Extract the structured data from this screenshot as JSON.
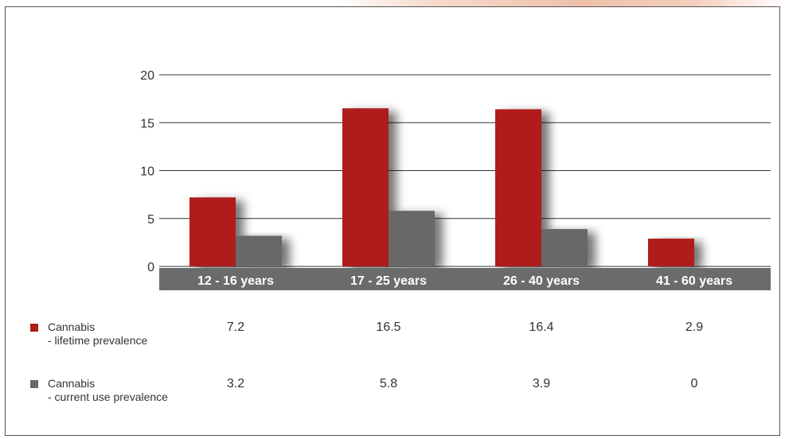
{
  "colors": {
    "lifetime": "#b01c1a",
    "current": "#676767",
    "category_band": "#6b6b6b",
    "grid": "#333333"
  },
  "chart_data": {
    "type": "bar",
    "categories": [
      "12 - 16 years",
      "17 - 25 years",
      "26 - 40 years",
      "41 - 60 years"
    ],
    "series": [
      {
        "name": "Cannabis - lifetime prevalence",
        "values": [
          7.2,
          16.5,
          16.4,
          2.9
        ]
      },
      {
        "name": "Cannabis - current use prevalence",
        "values": [
          3.2,
          5.8,
          3.9,
          0
        ]
      }
    ],
    "yticks": [
      "0",
      "5",
      "10",
      "15",
      "20"
    ],
    "ylim": [
      0,
      20
    ],
    "grid": true,
    "legend_placement": "bottom-left, as table rows"
  },
  "table": {
    "rows": [
      {
        "label_line1": "Cannabis",
        "label_line2": "- lifetime prevalence",
        "values": [
          "7.2",
          "16.5",
          "16.4",
          "2.9"
        ]
      },
      {
        "label_line1": "Cannabis",
        "label_line2": "- current use prevalence",
        "values": [
          "3.2",
          "5.8",
          "3.9",
          "0"
        ]
      }
    ]
  }
}
